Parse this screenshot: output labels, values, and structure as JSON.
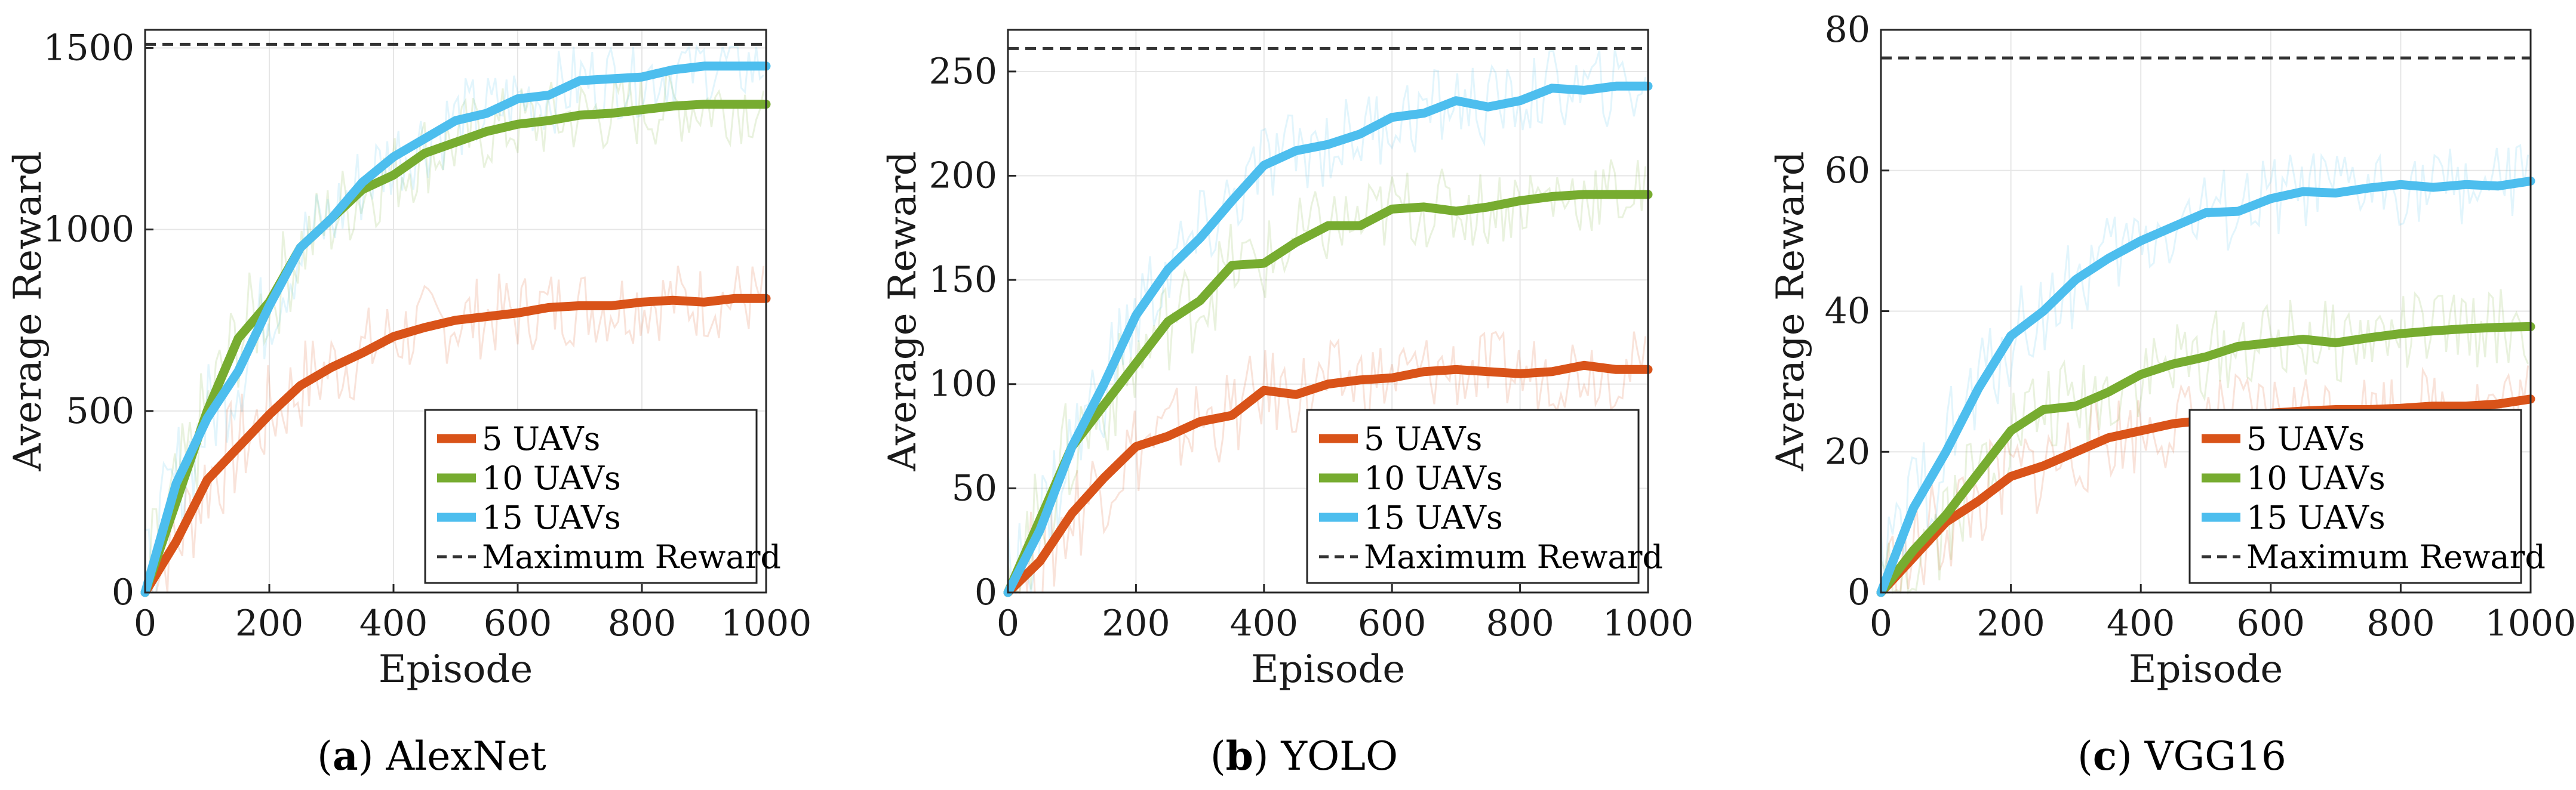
{
  "colors": {
    "uav5": "#d95319",
    "uav10": "#77ac30",
    "uav15": "#4dbeee",
    "max": "#333333",
    "grid": "#e6e6e6"
  },
  "chart_data": [
    {
      "type": "line",
      "caption_letter": "(a)",
      "caption_name": "AlexNet",
      "xlabel": "Episode",
      "ylabel": "Average Reward",
      "xlim": [
        0,
        1000
      ],
      "ylim": [
        0,
        1550
      ],
      "xticks": [
        0,
        200,
        400,
        600,
        800,
        1000
      ],
      "yticks": [
        0,
        500,
        1000,
        1500
      ],
      "max_reward": 1510,
      "legend": [
        "5 UAVs",
        "10 UAVs",
        "15 UAVs",
        "Maximum Reward"
      ],
      "series": [
        {
          "name": "5 UAVs",
          "x": [
            0,
            50,
            100,
            150,
            200,
            250,
            300,
            350,
            400,
            450,
            500,
            550,
            600,
            650,
            700,
            750,
            800,
            850,
            900,
            950,
            1000
          ],
          "values": [
            0,
            140,
            310,
            400,
            490,
            570,
            620,
            660,
            705,
            730,
            750,
            760,
            770,
            785,
            790,
            790,
            800,
            805,
            800,
            810,
            810
          ]
        },
        {
          "name": "10 UAVs",
          "x": [
            0,
            50,
            100,
            150,
            200,
            250,
            300,
            350,
            400,
            450,
            500,
            550,
            600,
            650,
            700,
            750,
            800,
            850,
            900,
            950,
            1000
          ],
          "values": [
            0,
            250,
            500,
            700,
            800,
            950,
            1030,
            1110,
            1150,
            1210,
            1240,
            1270,
            1290,
            1300,
            1315,
            1320,
            1330,
            1340,
            1345,
            1345,
            1345
          ]
        },
        {
          "name": "15 UAVs",
          "x": [
            0,
            50,
            100,
            150,
            200,
            250,
            300,
            350,
            400,
            450,
            500,
            550,
            600,
            650,
            700,
            750,
            800,
            850,
            900,
            950,
            1000
          ],
          "values": [
            0,
            300,
            480,
            610,
            790,
            950,
            1030,
            1130,
            1200,
            1250,
            1300,
            1320,
            1360,
            1370,
            1410,
            1415,
            1420,
            1440,
            1450,
            1450,
            1450
          ]
        }
      ]
    },
    {
      "type": "line",
      "caption_letter": "(b)",
      "caption_name": "YOLO",
      "xlabel": "Episode",
      "ylabel": "Average Reward",
      "xlim": [
        0,
        1000
      ],
      "ylim": [
        0,
        270
      ],
      "xticks": [
        0,
        200,
        400,
        600,
        800,
        1000
      ],
      "yticks": [
        0,
        50,
        100,
        150,
        200,
        250
      ],
      "max_reward": 261,
      "legend": [
        "5 UAVs",
        "10 UAVs",
        "15 UAVs",
        "Maximum Reward"
      ],
      "series": [
        {
          "name": "5 UAVs",
          "x": [
            0,
            50,
            100,
            150,
            200,
            250,
            300,
            350,
            400,
            450,
            500,
            550,
            600,
            650,
            700,
            750,
            800,
            850,
            900,
            950,
            1000
          ],
          "values": [
            0,
            15,
            38,
            55,
            70,
            75,
            82,
            85,
            97,
            95,
            100,
            102,
            103,
            106,
            107,
            106,
            105,
            106,
            109,
            107,
            107
          ]
        },
        {
          "name": "10 UAVs",
          "x": [
            0,
            50,
            100,
            150,
            200,
            250,
            300,
            350,
            400,
            450,
            500,
            550,
            600,
            650,
            700,
            750,
            800,
            850,
            900,
            950,
            1000
          ],
          "values": [
            0,
            35,
            70,
            90,
            110,
            130,
            140,
            157,
            158,
            168,
            176,
            176,
            184,
            185,
            183,
            185,
            188,
            190,
            191,
            191,
            191
          ]
        },
        {
          "name": "15 UAVs",
          "x": [
            0,
            50,
            100,
            150,
            200,
            250,
            300,
            350,
            400,
            450,
            500,
            550,
            600,
            650,
            700,
            750,
            800,
            850,
            900,
            950,
            1000
          ],
          "values": [
            0,
            30,
            70,
            100,
            133,
            155,
            170,
            188,
            205,
            212,
            215,
            220,
            228,
            230,
            236,
            233,
            236,
            242,
            241,
            243,
            243
          ]
        }
      ]
    },
    {
      "type": "line",
      "caption_letter": "(c)",
      "caption_name": "VGG16",
      "xlabel": "Episode",
      "ylabel": "Average Reward",
      "xlim": [
        0,
        1000
      ],
      "ylim": [
        0,
        80
      ],
      "xticks": [
        0,
        200,
        400,
        600,
        800,
        1000
      ],
      "yticks": [
        0,
        20,
        40,
        60,
        80
      ],
      "max_reward": 76,
      "legend": [
        "5 UAVs",
        "10 UAVs",
        "15 UAVs",
        "Maximum Reward"
      ],
      "series": [
        {
          "name": "5 UAVs",
          "x": [
            0,
            50,
            100,
            150,
            200,
            250,
            300,
            350,
            400,
            450,
            500,
            550,
            600,
            650,
            700,
            750,
            800,
            850,
            900,
            950,
            1000
          ],
          "values": [
            0,
            5,
            10,
            13,
            16.5,
            18,
            20,
            22,
            23,
            24,
            24.5,
            25,
            25.5,
            25.8,
            26,
            26,
            26.2,
            26.5,
            26.5,
            26.8,
            27.5
          ]
        },
        {
          "name": "10 UAVs",
          "x": [
            0,
            50,
            100,
            150,
            200,
            250,
            300,
            350,
            400,
            450,
            500,
            550,
            600,
            650,
            700,
            750,
            800,
            850,
            900,
            950,
            1000
          ],
          "values": [
            0,
            6,
            11,
            17,
            23,
            26,
            26.5,
            28.5,
            31,
            32.5,
            33.5,
            35,
            35.5,
            36,
            35.5,
            36.2,
            36.8,
            37.2,
            37.5,
            37.7,
            37.8
          ]
        },
        {
          "name": "15 UAVs",
          "x": [
            0,
            50,
            100,
            150,
            200,
            250,
            300,
            350,
            400,
            450,
            500,
            550,
            600,
            650,
            700,
            750,
            800,
            850,
            900,
            950,
            1000
          ],
          "values": [
            0,
            12,
            20,
            29,
            36.5,
            40,
            44.5,
            47.5,
            50,
            52,
            54,
            54.2,
            56,
            57,
            56.8,
            57.5,
            58,
            57.6,
            58,
            57.8,
            58.5
          ]
        }
      ]
    }
  ]
}
